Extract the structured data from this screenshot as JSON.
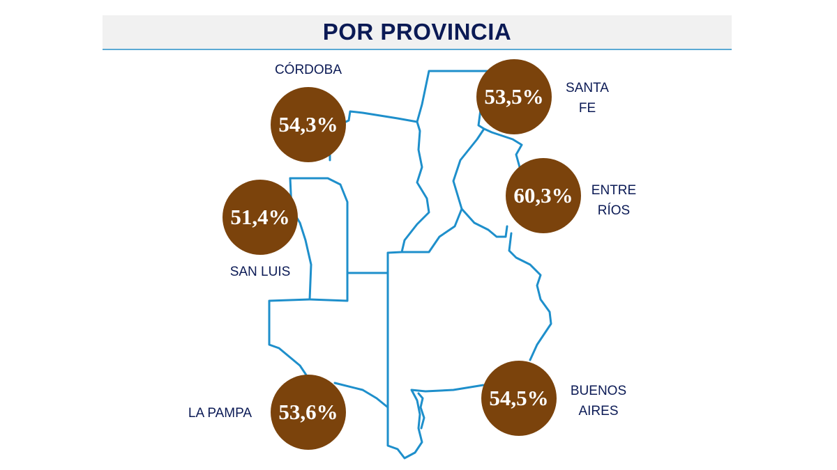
{
  "title": "POR PROVINCIA",
  "colors": {
    "bubble": "#7b430c",
    "outline": "#1e8fcb",
    "title_text": "#0b1a55",
    "title_bar": "#f1f1f1"
  },
  "provinces": {
    "cordoba": {
      "name": "CÓRDOBA",
      "value": "54,3%"
    },
    "santa_fe": {
      "name_line1": "SANTA",
      "name_line2": "FE",
      "value": "53,5%"
    },
    "entre_rios": {
      "name_line1": "ENTRE",
      "name_line2": "RÍOS",
      "value": "60,3%"
    },
    "san_luis": {
      "name": "SAN LUIS",
      "value": "51,4%"
    },
    "la_pampa": {
      "name": "LA PAMPA",
      "value": "53,6%"
    },
    "buenos_aires": {
      "name_line1": "BUENOS",
      "name_line2": "AIRES",
      "value": "54,5%"
    }
  }
}
